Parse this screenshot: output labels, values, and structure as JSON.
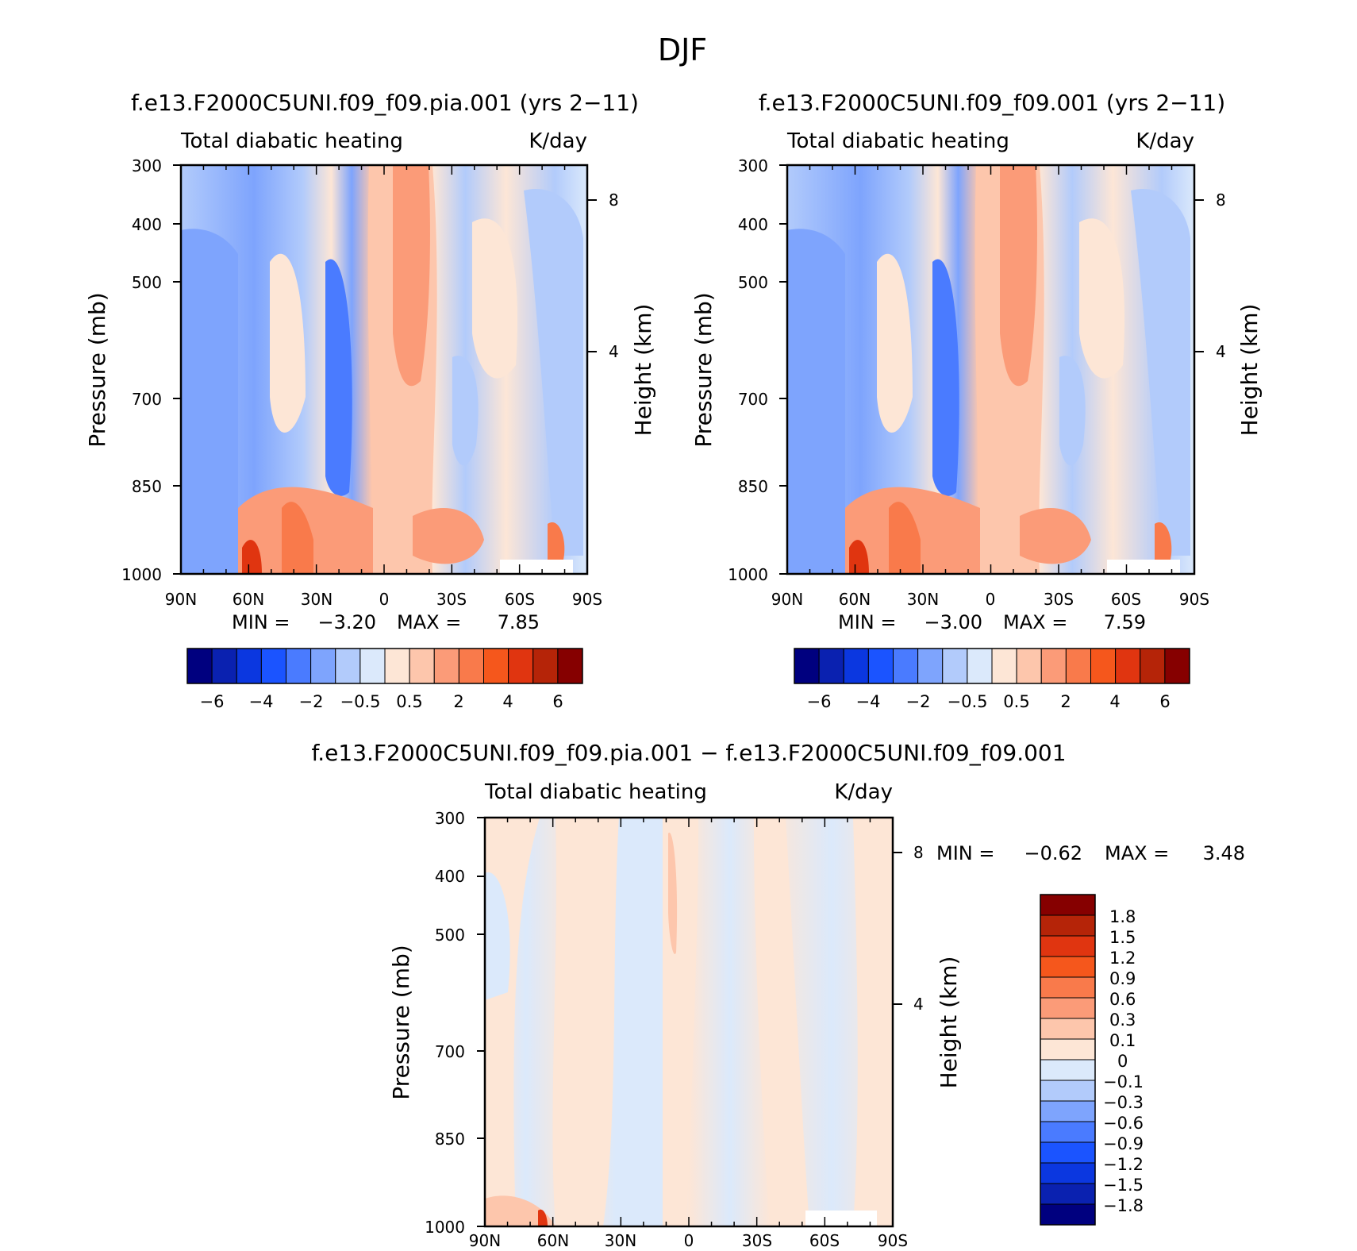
{
  "figure": {
    "title": "DJF"
  },
  "colors": {
    "full_scale": [
      "#00007f",
      "#0a21b0",
      "#0b37e0",
      "#1b54ff",
      "#4a7bff",
      "#7ea4fd",
      "#b2cbfb",
      "#dbe9fb",
      "#fde6d6",
      "#fdc6ac",
      "#fb9b78",
      "#f97a4b",
      "#f5571c",
      "#e03510",
      "#b52408",
      "#860000"
    ],
    "diff_scale": [
      "#00007f",
      "#0a21b0",
      "#0b37e0",
      "#1b54ff",
      "#4a7bff",
      "#7ea4fd",
      "#b2cbfb",
      "#dbe9fb",
      "#fde6d6",
      "#fdc6ac",
      "#fb9b78",
      "#f97a4b",
      "#f5571c",
      "#e03510",
      "#b52408",
      "#860000"
    ]
  },
  "chart_data": [
    {
      "type": "heatmap",
      "title": "f.e13.F2000C5UNI.f09_f09.pia.001 (yrs 2−11)",
      "left_string": "Total diabatic heating",
      "right_string": "K/day",
      "ylabel": "Pressure (mb)",
      "y2label": "Height (km)",
      "x_ticks": [
        "90N",
        "60N",
        "30N",
        "0",
        "30S",
        "60S",
        "90S"
      ],
      "y_ticks": [
        "300",
        "400",
        "500",
        "700",
        "850",
        "1000"
      ],
      "y2_ticks": [
        "8",
        "4"
      ],
      "stats": {
        "min_label": "MIN =",
        "min": "−3.20",
        "max_label": "MAX =",
        "max": "7.85"
      },
      "colorbar_labels": [
        "−6",
        "−4",
        "−2",
        "−0.5",
        "0.5",
        "2",
        "4",
        "6"
      ]
    },
    {
      "type": "heatmap",
      "title": "f.e13.F2000C5UNI.f09_f09.001 (yrs 2−11)",
      "left_string": "Total diabatic heating",
      "right_string": "K/day",
      "ylabel": "Pressure (mb)",
      "y2label": "Height (km)",
      "x_ticks": [
        "90N",
        "60N",
        "30N",
        "0",
        "30S",
        "60S",
        "90S"
      ],
      "y_ticks": [
        "300",
        "400",
        "500",
        "700",
        "850",
        "1000"
      ],
      "y2_ticks": [
        "8",
        "4"
      ],
      "stats": {
        "min_label": "MIN =",
        "min": "−3.00",
        "max_label": "MAX =",
        "max": "7.59"
      },
      "colorbar_labels": [
        "−6",
        "−4",
        "−2",
        "−0.5",
        "0.5",
        "2",
        "4",
        "6"
      ]
    },
    {
      "type": "heatmap",
      "title": "f.e13.F2000C5UNI.f09_f09.pia.001 − f.e13.F2000C5UNI.f09_f09.001",
      "left_string": "Total diabatic heating",
      "right_string": "K/day",
      "ylabel": "Pressure (mb)",
      "y2label": "Height (km)",
      "x_ticks": [
        "90N",
        "60N",
        "30N",
        "0",
        "30S",
        "60S",
        "90S"
      ],
      "y_ticks": [
        "300",
        "400",
        "500",
        "700",
        "850",
        "1000"
      ],
      "y2_ticks": [
        "8",
        "4"
      ],
      "stats": {
        "min_label": "MIN =",
        "min": "−0.62",
        "max_label": "MAX =",
        "max": "3.48"
      },
      "colorbar_labels": [
        "1.8",
        "1.5",
        "1.2",
        "0.9",
        "0.6",
        "0.3",
        "0.1",
        "0",
        "−0.1",
        "−0.3",
        "−0.6",
        "−0.9",
        "−1.2",
        "−1.5",
        "−1.8"
      ]
    }
  ]
}
